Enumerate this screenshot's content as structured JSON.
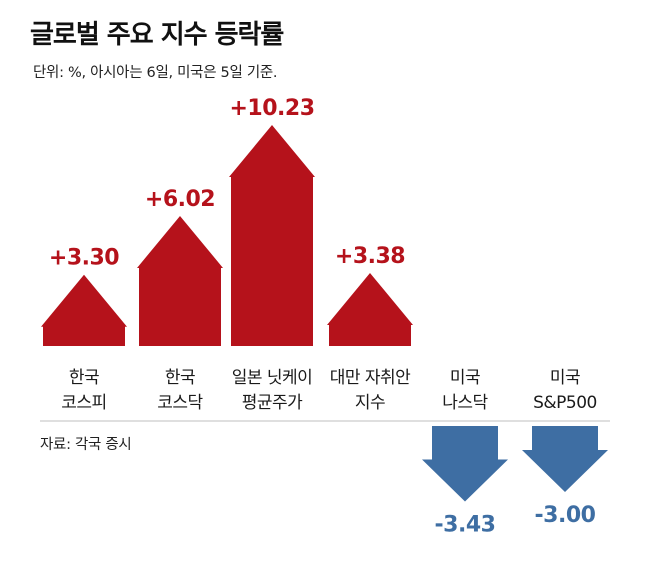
{
  "title": "글로벌 주요 지수 등락률",
  "subtitle": "단위: %, 아시아는 6일, 미국은 5일 기준.",
  "source": "자료: 각국 증시",
  "colors": {
    "up": "#b5121b",
    "down": "#3e6ea3"
  },
  "chart_data": {
    "type": "bar",
    "categories": [
      [
        "한국",
        "코스피"
      ],
      [
        "한국",
        "코스닥"
      ],
      [
        "일본 닛케이",
        "평균주가"
      ],
      [
        "대만 자취안",
        "지수"
      ],
      [
        "미국",
        "나스닥"
      ],
      [
        "미국",
        "S&P500"
      ]
    ],
    "values": [
      3.3,
      6.02,
      10.23,
      3.38,
      -3.43,
      -3.0
    ],
    "value_labels": [
      "+3.30",
      "+6.02",
      "+10.23",
      "+3.38",
      "-3.43",
      "-3.00"
    ],
    "unit": "%",
    "shape": "arrow"
  }
}
